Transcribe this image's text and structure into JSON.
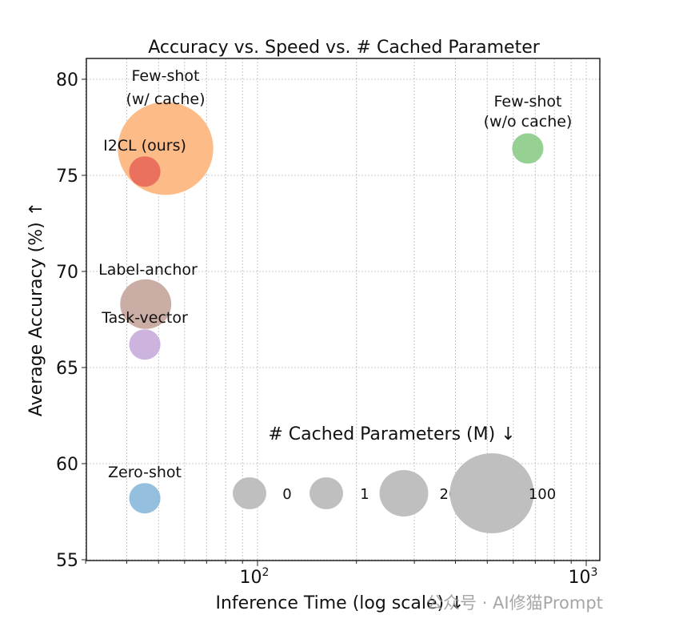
{
  "chart_data": {
    "type": "scatter",
    "title": "Accuracy vs. Speed vs. # Cached Parameter",
    "xlabel": "Inference Time (log scale) ↓",
    "ylabel": "Average Accuracy (%) ↑",
    "xscale": "log",
    "xlim": [
      30,
      1100
    ],
    "ylim": [
      55,
      81
    ],
    "yticks": [
      55,
      60,
      65,
      70,
      75,
      80
    ],
    "xticks": [
      {
        "value": 100,
        "label": "10",
        "exp": "2"
      },
      {
        "value": 1000,
        "label": "10",
        "exp": "3"
      }
    ],
    "grid": true,
    "points": [
      {
        "label": "Few-shot",
        "label2": "(w/ cache)",
        "x": 52.5,
        "y": 76.4,
        "cached_params_m": 100,
        "color": "#fdb57a"
      },
      {
        "label": "I2CL (ours)",
        "x": 45.4,
        "y": 75.2,
        "cached_params_m": 0,
        "color": "#e8685a"
      },
      {
        "label": "Few-shot",
        "label2": "(w/o cache)",
        "x": 664,
        "y": 76.4,
        "cached_params_m": 0,
        "color": "#8ccb87"
      },
      {
        "label": "Label-anchor",
        "x": 45.7,
        "y": 68.3,
        "cached_params_m": 20,
        "color": "#c4a49a"
      },
      {
        "label": "Task-vector",
        "x": 45.4,
        "y": 66.2,
        "cached_params_m": 0,
        "color": "#c6acdb"
      },
      {
        "label": "Zero-shot",
        "x": 45.4,
        "y": 58.2,
        "cached_params_m": 0,
        "color": "#8ab8da"
      }
    ],
    "size_legend": {
      "title": "# Cached Parameters (M) ↓",
      "entries": [
        {
          "label": "0",
          "size": 0
        },
        {
          "label": "1",
          "size": 1
        },
        {
          "label": "20",
          "size": 20
        },
        {
          "label": "100",
          "size": 100
        }
      ],
      "color": "#bfbfbf",
      "placement": "bottom-right"
    }
  },
  "watermark": "公众号 · AI修猫Prompt"
}
